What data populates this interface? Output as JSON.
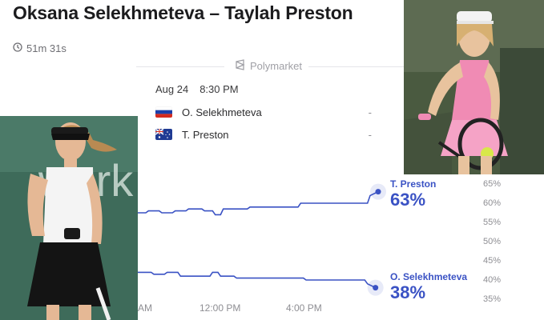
{
  "header": {
    "title": "Oksana Selekhmeteva – Taylah Preston",
    "duration": "51m 31s",
    "source": "Polymarket"
  },
  "match": {
    "date": "Aug 24",
    "time": "8:30 PM",
    "players": [
      {
        "name": "O. Selekhmeteva",
        "score": "-",
        "flag": "russia"
      },
      {
        "name": "T. Preston",
        "score": "-",
        "flag": "australia"
      }
    ]
  },
  "colors": {
    "line": "#3a52c4",
    "accent": "#3a52c4"
  },
  "chart_data": {
    "type": "line",
    "x_ticks": [
      "AM",
      "12:00 PM",
      "4:00 PM"
    ],
    "y_ticks": [
      "65%",
      "60%",
      "55%",
      "50%",
      "45%",
      "40%",
      "35%"
    ],
    "ylim": [
      35,
      65
    ],
    "series": [
      {
        "name": "T. Preston",
        "label_pct": "63%",
        "points": [
          [
            0,
            57.5
          ],
          [
            3,
            57.5
          ],
          [
            4,
            58
          ],
          [
            8,
            58
          ],
          [
            9,
            57.5
          ],
          [
            13,
            57.5
          ],
          [
            14,
            58
          ],
          [
            18,
            58
          ],
          [
            19,
            58.5
          ],
          [
            24,
            58.5
          ],
          [
            25,
            58
          ],
          [
            28,
            58
          ],
          [
            29,
            57
          ],
          [
            31,
            57
          ],
          [
            32,
            58.5
          ],
          [
            41,
            58.5
          ],
          [
            42,
            59
          ],
          [
            60,
            59
          ],
          [
            61,
            60
          ],
          [
            86,
            60
          ],
          [
            87,
            62
          ],
          [
            90,
            63
          ]
        ]
      },
      {
        "name": "O. Selekhmeteva",
        "label_pct": "38%",
        "points": [
          [
            0,
            42
          ],
          [
            5,
            42
          ],
          [
            6,
            41.5
          ],
          [
            10,
            41.5
          ],
          [
            11,
            42
          ],
          [
            15,
            42
          ],
          [
            16,
            41
          ],
          [
            27,
            41
          ],
          [
            28,
            42
          ],
          [
            30,
            42
          ],
          [
            31,
            41
          ],
          [
            36,
            41
          ],
          [
            37,
            40.5
          ],
          [
            62,
            40.5
          ],
          [
            63,
            40
          ],
          [
            85,
            40
          ],
          [
            86,
            39
          ],
          [
            89,
            38
          ]
        ]
      }
    ]
  }
}
